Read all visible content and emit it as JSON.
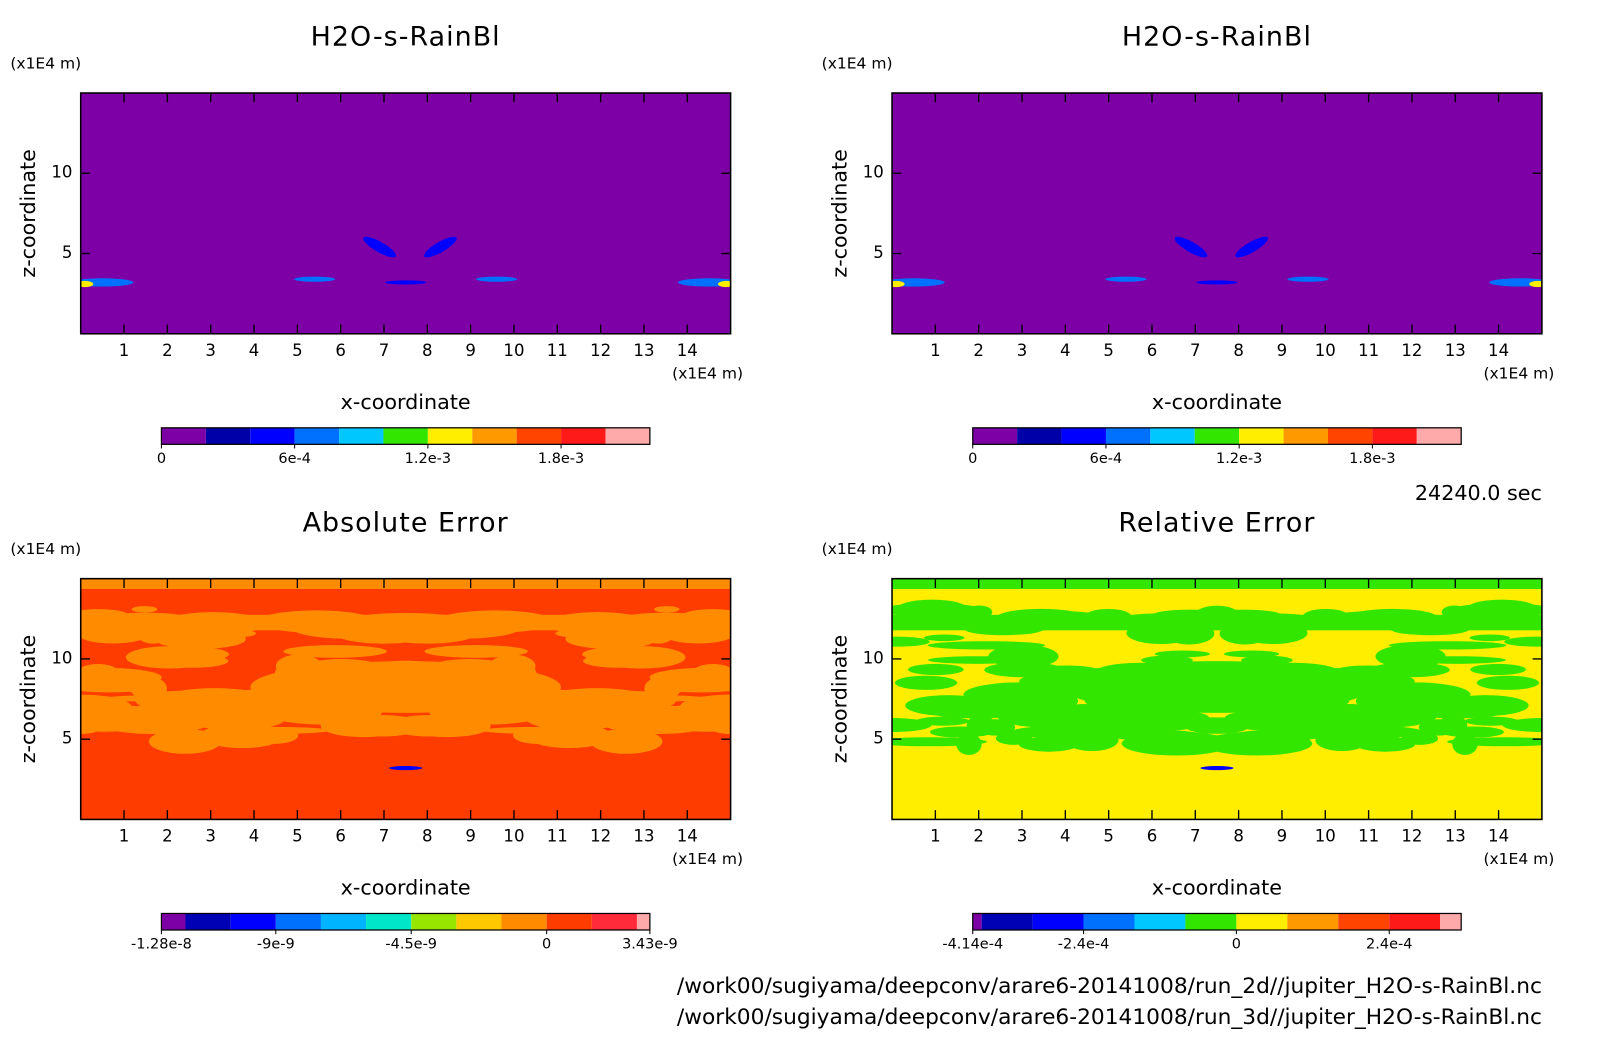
{
  "chart_data": [
    {
      "type": "contour",
      "title": "H2O-s-RainBl",
      "xlabel": "x-coordinate",
      "ylabel": "z-coordinate",
      "x_unit": "(x1E4 m)",
      "y_unit": "(x1E4 m)",
      "xlim": [
        0,
        15
      ],
      "ylim": [
        0,
        15
      ],
      "xticks": [
        1,
        2,
        3,
        4,
        5,
        6,
        7,
        8,
        9,
        10,
        11,
        12,
        13,
        14
      ],
      "yticks": [
        5,
        10
      ],
      "clim": [
        0,
        0.0022
      ],
      "levels": [
        0.0002,
        0.0004,
        0.0006,
        0.0008,
        0.001,
        0.0012,
        0.0014,
        0.0016,
        0.0018,
        0.002
      ],
      "colors": [
        "#7d00a6",
        "#0000a8",
        "#0000ff",
        "#0070ff",
        "#00c8ff",
        "#33e600",
        "#ffee00",
        "#ff9900",
        "#ff4400",
        "#ff1a1a",
        "#ffaaaa"
      ],
      "cticks": [
        0,
        {
          "value": 0.0006,
          "label": "6e-4"
        },
        {
          "value": 0.0012,
          "label": "1.2e-3"
        },
        {
          "value": 0.0018,
          "label": "1.8e-3"
        }
      ]
    },
    {
      "type": "contour",
      "title": "H2O-s-RainBl",
      "xlabel": "x-coordinate",
      "ylabel": "z-coordinate",
      "x_unit": "(x1E4 m)",
      "y_unit": "(x1E4 m)",
      "xlim": [
        0,
        15
      ],
      "ylim": [
        0,
        15
      ],
      "xticks": [
        1,
        2,
        3,
        4,
        5,
        6,
        7,
        8,
        9,
        10,
        11,
        12,
        13,
        14
      ],
      "yticks": [
        5,
        10
      ],
      "clim": [
        0,
        0.0022
      ],
      "levels": [
        0.0002,
        0.0004,
        0.0006,
        0.0008,
        0.001,
        0.0012,
        0.0014,
        0.0016,
        0.0018,
        0.002
      ],
      "colors": [
        "#7d00a6",
        "#0000a8",
        "#0000ff",
        "#0070ff",
        "#00c8ff",
        "#33e600",
        "#ffee00",
        "#ff9900",
        "#ff4400",
        "#ff1a1a",
        "#ffaaaa"
      ],
      "cticks": [
        0,
        {
          "value": 0.0006,
          "label": "6e-4"
        },
        {
          "value": 0.0012,
          "label": "1.2e-3"
        },
        {
          "value": 0.0018,
          "label": "1.8e-3"
        }
      ]
    },
    {
      "type": "contour",
      "title": "Absolute Error",
      "xlabel": "x-coordinate",
      "ylabel": "z-coordinate",
      "x_unit": "(x1E4 m)",
      "y_unit": "(x1E4 m)",
      "xlim": [
        0,
        15
      ],
      "ylim": [
        0,
        15
      ],
      "xticks": [
        1,
        2,
        3,
        4,
        5,
        6,
        7,
        8,
        9,
        10,
        11,
        12,
        13,
        14
      ],
      "yticks": [
        5,
        10
      ],
      "clim": [
        -1.28e-08,
        3.43e-09
      ],
      "levels": [
        -1.2e-08,
        -1.05e-08,
        -9e-09,
        -7.5e-09,
        -6e-09,
        -4.5e-09,
        -3e-09,
        -1.5e-09,
        0,
        1.5e-09,
        3e-09
      ],
      "colors": [
        "#7d00a6",
        "#0000b4",
        "#0000ff",
        "#0070ff",
        "#00b4ff",
        "#00e6c8",
        "#96e600",
        "#ffc800",
        "#ff8c00",
        "#ff3c00",
        "#ff2a3a",
        "#ffaaaa"
      ],
      "cticks": [
        -1.28e-08,
        -9e-09,
        -4.5e-09,
        0,
        3.43e-09
      ]
    },
    {
      "type": "contour",
      "title": "Relative Error",
      "xlabel": "x-coordinate",
      "ylabel": "z-coordinate",
      "x_unit": "(x1E4 m)",
      "y_unit": "(x1E4 m)",
      "xlim": [
        0,
        15
      ],
      "ylim": [
        0,
        15
      ],
      "xticks": [
        1,
        2,
        3,
        4,
        5,
        6,
        7,
        8,
        9,
        10,
        11,
        12,
        13,
        14
      ],
      "yticks": [
        5,
        10
      ],
      "clim": [
        -0.000414,
        0.000353
      ],
      "levels": [
        -0.0004,
        -0.00032,
        -0.00024,
        -0.00016,
        -8e-05,
        0,
        8e-05,
        0.00016,
        0.00024,
        0.00032
      ],
      "colors": [
        "#7d00a6",
        "#0000b4",
        "#0000ff",
        "#0070ff",
        "#00c8ff",
        "#33e600",
        "#ffee00",
        "#ff9900",
        "#ff4400",
        "#ff1a1a",
        "#ffaaaa"
      ],
      "cticks": [
        {
          "value": -0.000414,
          "label": "-4.14e-4"
        },
        {
          "value": -0.00024,
          "label": "-2.4e-4"
        },
        0,
        {
          "value": 0.00024,
          "label": "2.4e-4"
        }
      ]
    }
  ],
  "time_label": "24240.0 sec",
  "files": [
    "/work00/sugiyama/deepconv/arare6-20141008/run_2d//jupiter_H2O-s-RainBl.nc",
    "/work00/sugiyama/deepconv/arare6-20141008/run_3d//jupiter_H2O-s-RainBl.nc"
  ]
}
